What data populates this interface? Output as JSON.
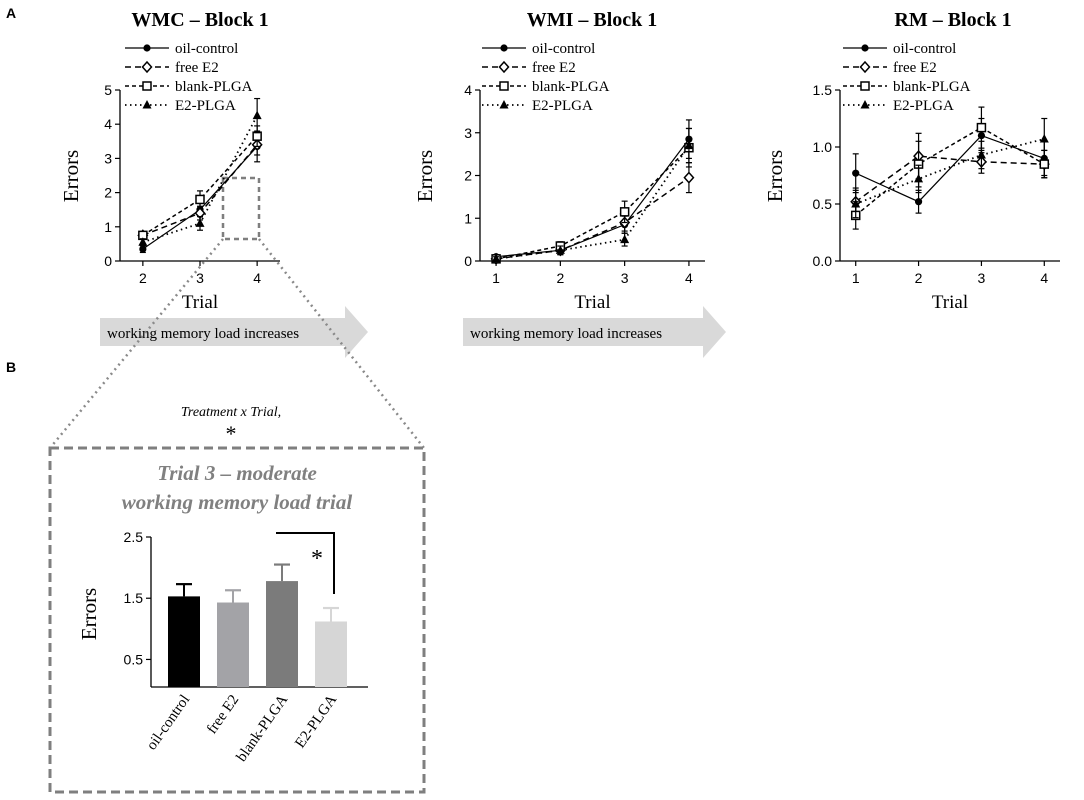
{
  "panel_labels": {
    "a": "A",
    "b": "B"
  },
  "arrows": [
    {
      "label": "working  memory  load increases"
    },
    {
      "label": "working  memory  load increases"
    }
  ],
  "interaction_note": {
    "text": "Treatment x Trial,",
    "star": "*"
  },
  "series_names": [
    "oil-control",
    "free E2",
    "blank-PLGA",
    "E2-PLGA"
  ],
  "colors": {
    "bar_oil": "#000000",
    "bar_free": "#a3a3a7",
    "bar_blank": "#7b7b7b",
    "bar_e2": "#d6d6d6",
    "arrow": "#d9d9d9",
    "dashed_box": "#7f7f7f",
    "inset_title": "#808080"
  },
  "chart_data": [
    {
      "type": "line",
      "title": "WMC  – Block 1",
      "xlabel": "Trial",
      "ylabel": "Errors",
      "x": [
        2,
        3,
        4
      ],
      "x_ticks": [
        "2",
        "3",
        "4"
      ],
      "y_ticks": [
        "0",
        "1",
        "2",
        "3",
        "4",
        "5"
      ],
      "ylim": [
        0,
        5
      ],
      "xlim": [
        1.6,
        4.4
      ],
      "series": [
        {
          "name": "oil-control",
          "marker": "circle",
          "values": [
            0.35,
            1.5,
            3.35
          ],
          "err": [
            0.1,
            0.2,
            0.45
          ]
        },
        {
          "name": "free E2",
          "marker": "diamond",
          "values": [
            0.75,
            1.4,
            3.4
          ],
          "err": [
            0.1,
            0.2,
            0.3
          ]
        },
        {
          "name": "blank-PLGA",
          "marker": "square",
          "values": [
            0.75,
            1.8,
            3.65
          ],
          "err": [
            0.1,
            0.25,
            0.3
          ]
        },
        {
          "name": "E2-PLGA",
          "marker": "triangle",
          "values": [
            0.55,
            1.1,
            4.25
          ],
          "err": [
            0.1,
            0.2,
            0.5
          ]
        }
      ]
    },
    {
      "type": "line",
      "title": "WMI  – Block 1",
      "xlabel": "Trial",
      "ylabel": "Errors",
      "x": [
        1,
        2,
        3,
        4
      ],
      "x_ticks": [
        "1",
        "2",
        "3",
        "4"
      ],
      "y_ticks": [
        "0",
        "1",
        "2",
        "3",
        "4"
      ],
      "ylim": [
        0,
        4
      ],
      "xlim": [
        0.75,
        4.25
      ],
      "series": [
        {
          "name": "oil-control",
          "marker": "circle",
          "values": [
            0.1,
            0.25,
            0.85,
            2.85
          ],
          "err": [
            0.05,
            0.1,
            0.2,
            0.45
          ]
        },
        {
          "name": "free E2",
          "marker": "diamond",
          "values": [
            0.05,
            0.25,
            0.9,
            1.95
          ],
          "err": [
            0.05,
            0.1,
            0.2,
            0.35
          ]
        },
        {
          "name": "blank-PLGA",
          "marker": "square",
          "values": [
            0.05,
            0.35,
            1.15,
            2.65
          ],
          "err": [
            0.05,
            0.1,
            0.25,
            0.45
          ]
        },
        {
          "name": "E2-PLGA",
          "marker": "triangle",
          "values": [
            0.05,
            0.25,
            0.5,
            2.7
          ],
          "err": [
            0.05,
            0.1,
            0.15,
            0.4
          ]
        }
      ]
    },
    {
      "type": "line",
      "title": "RM  – Block 1",
      "xlabel": "Trial",
      "ylabel": "Errors",
      "x": [
        1,
        2,
        3,
        4
      ],
      "x_ticks": [
        "1",
        "2",
        "3",
        "4"
      ],
      "y_ticks": [
        "0.0",
        "0.5",
        "1.0",
        "1.5"
      ],
      "ylim": [
        0,
        1.5
      ],
      "xlim": [
        0.75,
        4.25
      ],
      "series": [
        {
          "name": "oil-control",
          "marker": "circle",
          "values": [
            0.77,
            0.52,
            1.1,
            0.9
          ],
          "err": [
            0.17,
            0.1,
            0.15,
            0.15
          ]
        },
        {
          "name": "free E2",
          "marker": "diamond",
          "values": [
            0.52,
            0.92,
            0.87,
            0.85
          ],
          "err": [
            0.12,
            0.2,
            0.1,
            0.12
          ]
        },
        {
          "name": "blank-PLGA",
          "marker": "square",
          "values": [
            0.4,
            0.85,
            1.17,
            0.85
          ],
          "err": [
            0.12,
            0.2,
            0.18,
            0.12
          ]
        },
        {
          "name": "E2-PLGA",
          "marker": "triangle",
          "values": [
            0.5,
            0.72,
            0.93,
            1.07
          ],
          "err": [
            0.12,
            0.12,
            0.12,
            0.18
          ]
        }
      ]
    },
    {
      "type": "bar",
      "title_line1": "Trial 3 – moderate",
      "title_line2": "working memory  load trial",
      "ylabel": "Errors",
      "categories": [
        "oil-control",
        "free E2",
        "blank-PLGA",
        "E2-PLGA"
      ],
      "values": [
        1.53,
        1.43,
        1.78,
        1.12
      ],
      "err": [
        0.2,
        0.2,
        0.27,
        0.22
      ],
      "y_ticks": [
        "0.5",
        "1.5",
        "2.5"
      ],
      "ylim": [
        0.05,
        2.5
      ],
      "significance": "*"
    }
  ]
}
